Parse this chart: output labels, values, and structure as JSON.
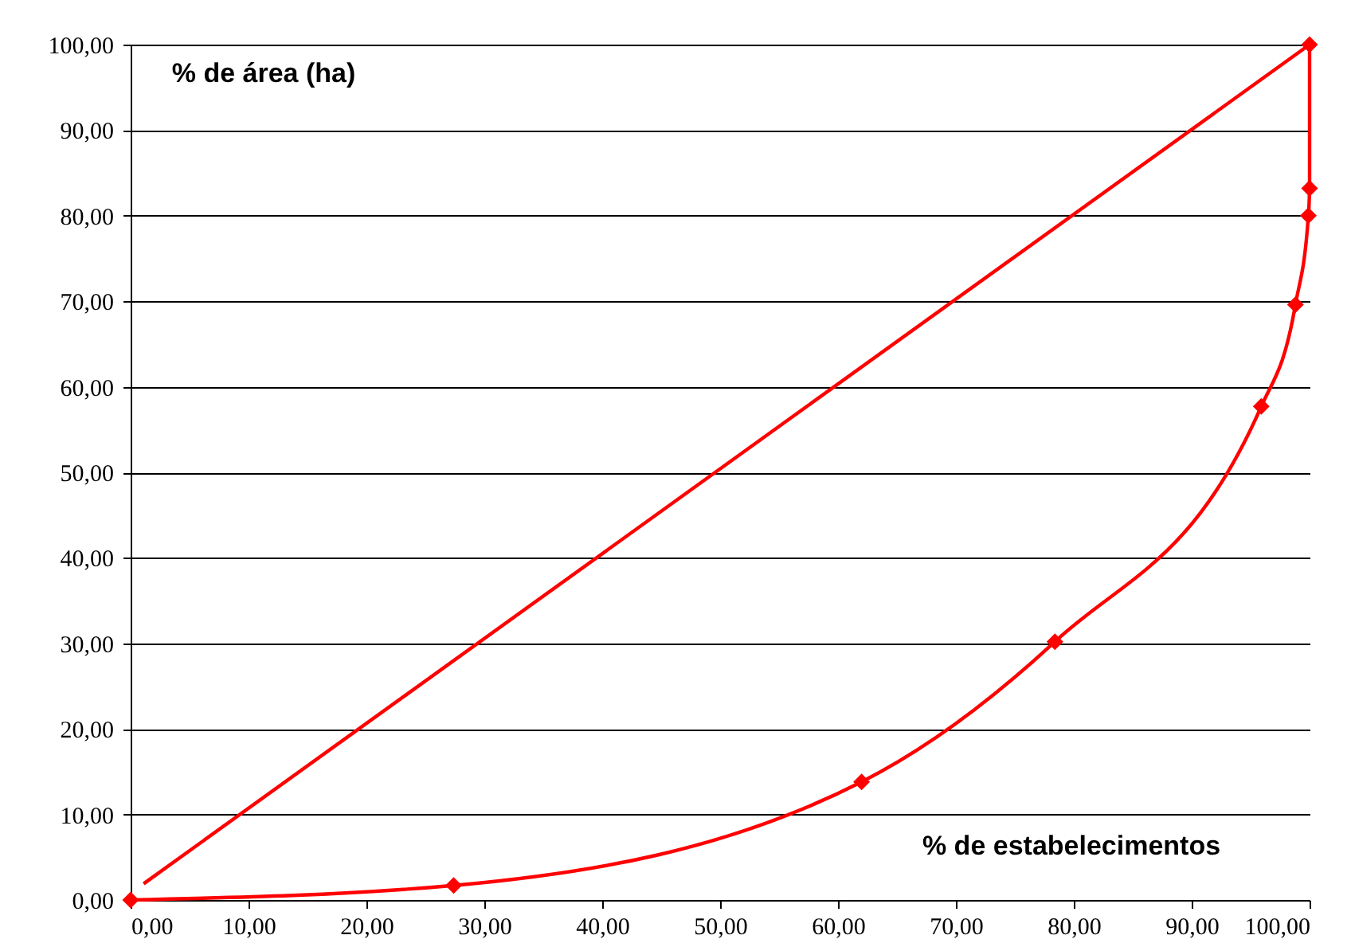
{
  "chart_data": {
    "type": "line",
    "xlabel": "% de estabelecimentos",
    "ylabel": "% de área (ha)",
    "series": [
      {
        "color": "#ff0000",
        "x": [
          1.1,
          100
        ],
        "values": [
          1.9,
          100
        ]
      },
      {
        "color": "#ff0000",
        "marker": "diamond",
        "x": [
          0,
          27.4,
          62.0,
          78.4,
          95.9,
          98.8,
          99.9,
          100,
          100
        ],
        "values": [
          0,
          1.7,
          13.8,
          30.2,
          57.7,
          69.6,
          80,
          83.2,
          100
        ]
      }
    ],
    "xlim": [
      0,
      100
    ],
    "ylim": [
      0,
      100
    ],
    "xticks": [
      {
        "value": 0,
        "label": "0,00"
      },
      {
        "value": 10,
        "label": "10,00"
      },
      {
        "value": 20,
        "label": "20,00"
      },
      {
        "value": 30,
        "label": "30,00"
      },
      {
        "value": 40,
        "label": "40,00"
      },
      {
        "value": 50,
        "label": "50,00"
      },
      {
        "value": 60,
        "label": "60,00"
      },
      {
        "value": 70,
        "label": "70,00"
      },
      {
        "value": 80,
        "label": "80,00"
      },
      {
        "value": 90,
        "label": "90,00"
      },
      {
        "value": 100,
        "label": "100,00"
      }
    ],
    "yticks": [
      {
        "value": 0,
        "label": "0,00"
      },
      {
        "value": 10,
        "label": "10,00"
      },
      {
        "value": 20,
        "label": "20,00"
      },
      {
        "value": 30,
        "label": "30,00"
      },
      {
        "value": 40,
        "label": "40,00"
      },
      {
        "value": 50,
        "label": "50,00"
      },
      {
        "value": 60,
        "label": "60,00"
      },
      {
        "value": 70,
        "label": "70,00"
      },
      {
        "value": 80,
        "label": "80,00"
      },
      {
        "value": 90,
        "label": "90,00"
      },
      {
        "value": 100,
        "label": "100,00"
      }
    ],
    "grid": "y",
    "line_style": "solid"
  }
}
